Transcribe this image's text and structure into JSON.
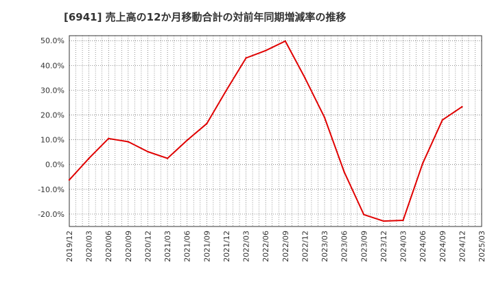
{
  "chart_data": {
    "type": "line",
    "title": "[6941]  売上高の12か月移動合計の対前年同期増減率の推移",
    "xlabel": "",
    "ylabel": "",
    "ylim": [
      -25,
      52
    ],
    "yticks": [
      -20,
      -10,
      0,
      10,
      20,
      30,
      40,
      50
    ],
    "ytick_labels": [
      "-20.0%",
      "-10.0%",
      "0.0%",
      "10.0%",
      "20.0%",
      "30.0%",
      "40.0%",
      "50.0%"
    ],
    "categories": [
      "2019/12",
      "2020/03",
      "2020/06",
      "2020/09",
      "2020/12",
      "2021/03",
      "2021/06",
      "2021/09",
      "2021/12",
      "2022/03",
      "2022/06",
      "2022/09",
      "2022/12",
      "2023/03",
      "2023/06",
      "2023/09",
      "2023/12",
      "2024/03",
      "2024/06",
      "2024/09",
      "2024/12",
      "2025/03"
    ],
    "series": [
      {
        "name": "対前年同期増減率",
        "color": "#e00000",
        "values": [
          -6.2,
          2.5,
          10.5,
          9.2,
          5.2,
          2.5,
          9.8,
          16.5,
          30.0,
          43.0,
          46.0,
          49.8,
          35.0,
          19.0,
          -3.0,
          -20.2,
          -22.8,
          -22.5,
          0.5,
          18.0,
          23.3,
          null
        ]
      }
    ],
    "grid": true,
    "grid_color": "#555555",
    "axis_color": "#333333",
    "background": "#ffffff"
  }
}
